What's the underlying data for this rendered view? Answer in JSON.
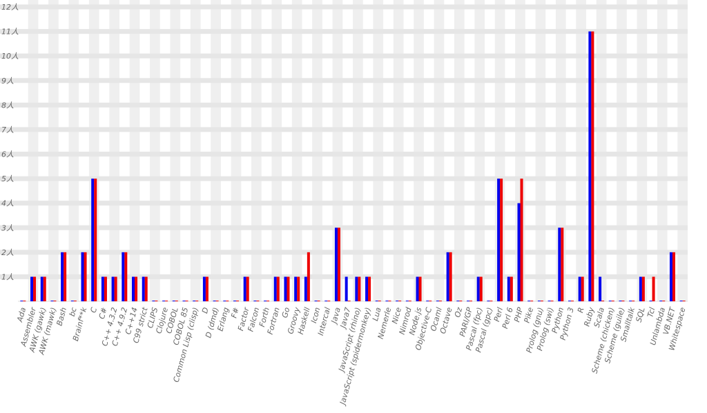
{
  "chart_data": {
    "type": "bar",
    "categories": [
      "Ada",
      "Assembler",
      "AWK (gawk)",
      "AWK (mawk)",
      "Bash",
      "bc",
      "Brainf**k",
      "C",
      "C#",
      "C++ 4.3.2",
      "C++ 4.9.2",
      "C++14",
      "C99 strict",
      "CLIPS",
      "Clojure",
      "COBOL",
      "COBOL 85",
      "Common Lisp (clisp)",
      "D",
      "D (dmd)",
      "Erlang",
      "F#",
      "Factor",
      "Falcon",
      "Forth",
      "Fortran",
      "Go",
      "Groovy",
      "Haskell",
      "Icon",
      "Intercal",
      "Java",
      "Java7",
      "JavaScript (rhino)",
      "JavaScript (spidermonkey)",
      "Lua",
      "Nemerle",
      "Nice",
      "Nimrod",
      "Node.js",
      "Objective-C",
      "Ocaml",
      "Octave",
      "Oz",
      "PARI/GP",
      "Pascal (fpc)",
      "Pascal (gpc)",
      "Perl",
      "Perl 6",
      "PHP",
      "Pike",
      "Prolog (gnu)",
      "Prolog (swi)",
      "Python",
      "Python 3",
      "R",
      "Ruby",
      "Scala",
      "Scheme (chicken)",
      "Scheme (guile)",
      "Smalltalk",
      "SQL",
      "Tcl",
      "Unlambda",
      "VB.NET",
      "Whitespace"
    ],
    "series": [
      {
        "color": "#0000ee",
        "values": [
          0,
          1,
          1,
          0,
          2,
          0,
          2,
          5,
          1,
          1,
          2,
          1,
          1,
          0,
          0,
          0,
          0,
          0,
          1,
          0,
          0,
          0,
          1,
          0,
          0,
          1,
          1,
          1,
          1,
          0,
          0,
          3,
          1,
          1,
          1,
          0,
          0,
          0,
          0,
          1,
          0,
          0,
          2,
          0,
          0,
          1,
          0,
          5,
          1,
          4,
          0,
          0,
          0,
          3,
          0,
          1,
          11,
          1,
          0,
          0,
          0,
          1,
          0,
          0,
          2,
          0
        ]
      },
      {
        "color": "#ee0000",
        "values": [
          0,
          1,
          1,
          0,
          2,
          0,
          2,
          5,
          1,
          1,
          2,
          1,
          1,
          0,
          0,
          0,
          0,
          0,
          1,
          0,
          0,
          0,
          1,
          0,
          0,
          1,
          1,
          1,
          2,
          0,
          0,
          3,
          0,
          1,
          1,
          0,
          0,
          0,
          0,
          1,
          0,
          0,
          2,
          0,
          0,
          1,
          0,
          5,
          1,
          5,
          0,
          0,
          0,
          3,
          0,
          1,
          11,
          0,
          0,
          0,
          0,
          1,
          1,
          0,
          2,
          0
        ]
      }
    ],
    "ylim": [
      0,
      12
    ],
    "yticks": [
      {
        "value": 1,
        "label": "1人"
      },
      {
        "value": 2,
        "label": "2人"
      },
      {
        "value": 3,
        "label": "3人"
      },
      {
        "value": 4,
        "label": "4人"
      },
      {
        "value": 5,
        "label": "5人"
      },
      {
        "value": 6,
        "label": "6人"
      },
      {
        "value": 7,
        "label": "7人"
      },
      {
        "value": 8,
        "label": "8人"
      },
      {
        "value": 9,
        "label": "9人"
      },
      {
        "value": 10,
        "label": "10人"
      },
      {
        "value": 11,
        "label": "11人"
      },
      {
        "value": 12,
        "label": "12人"
      }
    ],
    "grid": true
  }
}
